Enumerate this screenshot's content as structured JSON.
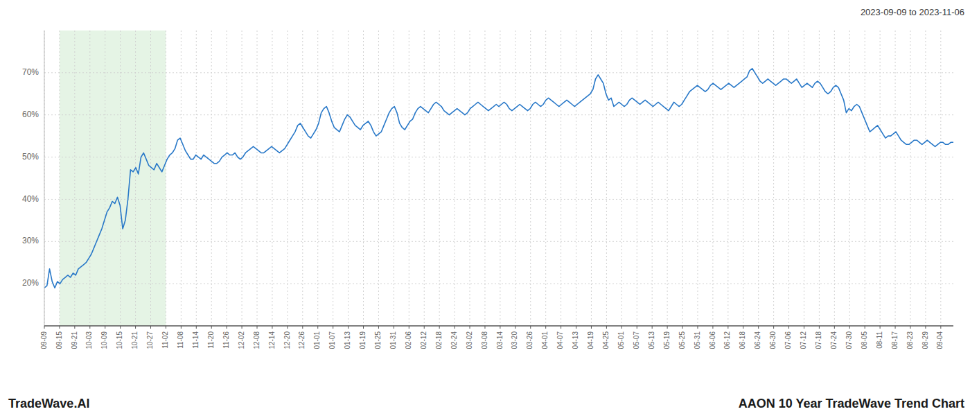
{
  "chart_data": {
    "type": "line",
    "title": "AAON 10 Year TradeWave Trend Chart",
    "subtitle": "2023-09-09 to 2023-11-06",
    "annotations": [
      "TradeWave.AI"
    ],
    "color": "#2878c8",
    "grid": true,
    "span": {
      "x": [
        5.8167,
        46.5333
      ],
      "color": "#d4ecd4"
    },
    "xlim": [
      0,
      348
    ],
    "xticks": [
      {
        "value": 0,
        "label": "09-09"
      },
      {
        "value": 5.8167,
        "label": "09-15"
      },
      {
        "value": 11.6333,
        "label": "09-21"
      },
      {
        "value": 17.45,
        "label": "10-03"
      },
      {
        "value": 23.2667,
        "label": "10-09"
      },
      {
        "value": 29.0833,
        "label": "10-15"
      },
      {
        "value": 34.9,
        "label": "10-21"
      },
      {
        "value": 40.7167,
        "label": "10-27"
      },
      {
        "value": 46.5333,
        "label": "11-02"
      },
      {
        "value": 52.35,
        "label": "11-08"
      },
      {
        "value": 58.1667,
        "label": "11-14"
      },
      {
        "value": 63.9833,
        "label": "11-20"
      },
      {
        "value": 69.8,
        "label": "11-26"
      },
      {
        "value": 75.6167,
        "label": "12-02"
      },
      {
        "value": 81.4333,
        "label": "12-08"
      },
      {
        "value": 87.25,
        "label": "12-14"
      },
      {
        "value": 93.0667,
        "label": "12-20"
      },
      {
        "value": 98.8833,
        "label": "12-26"
      },
      {
        "value": 104.7,
        "label": "01-01"
      },
      {
        "value": 110.5167,
        "label": "01-07"
      },
      {
        "value": 116.3333,
        "label": "01-13"
      },
      {
        "value": 122.15,
        "label": "01-19"
      },
      {
        "value": 127.9667,
        "label": "01-25"
      },
      {
        "value": 133.7833,
        "label": "01-31"
      },
      {
        "value": 139.6,
        "label": "02-06"
      },
      {
        "value": 145.4167,
        "label": "02-12"
      },
      {
        "value": 151.2333,
        "label": "02-18"
      },
      {
        "value": 157.05,
        "label": "02-24"
      },
      {
        "value": 162.8667,
        "label": "03-02"
      },
      {
        "value": 168.6833,
        "label": "03-08"
      },
      {
        "value": 174.5,
        "label": "03-14"
      },
      {
        "value": 180.3167,
        "label": "03-20"
      },
      {
        "value": 186.1333,
        "label": "03-26"
      },
      {
        "value": 191.95,
        "label": "04-01"
      },
      {
        "value": 197.7667,
        "label": "04-07"
      },
      {
        "value": 203.5833,
        "label": "04-13"
      },
      {
        "value": 209.4,
        "label": "04-19"
      },
      {
        "value": 215.2167,
        "label": "04-25"
      },
      {
        "value": 221.0333,
        "label": "05-01"
      },
      {
        "value": 226.85,
        "label": "05-07"
      },
      {
        "value": 232.6667,
        "label": "05-13"
      },
      {
        "value": 238.4833,
        "label": "05-19"
      },
      {
        "value": 244.3,
        "label": "05-25"
      },
      {
        "value": 250.1167,
        "label": "05-31"
      },
      {
        "value": 255.9333,
        "label": "06-06"
      },
      {
        "value": 261.75,
        "label": "06-12"
      },
      {
        "value": 267.5667,
        "label": "06-18"
      },
      {
        "value": 273.3833,
        "label": "06-24"
      },
      {
        "value": 279.2,
        "label": "06-30"
      },
      {
        "value": 285.0167,
        "label": "07-06"
      },
      {
        "value": 290.8333,
        "label": "07-12"
      },
      {
        "value": 296.65,
        "label": "07-18"
      },
      {
        "value": 302.4667,
        "label": "07-24"
      },
      {
        "value": 308.2833,
        "label": "07-30"
      },
      {
        "value": 314.1,
        "label": "08-05"
      },
      {
        "value": 319.9167,
        "label": "08-11"
      },
      {
        "value": 325.7333,
        "label": "08-17"
      },
      {
        "value": 331.55,
        "label": "08-23"
      },
      {
        "value": 337.3667,
        "label": "08-29"
      },
      {
        "value": 343.1833,
        "label": "09-04"
      }
    ],
    "ylim": [
      10,
      80
    ],
    "yticks": [
      {
        "value": 20,
        "label": "20%"
      },
      {
        "value": 30,
        "label": "30%"
      },
      {
        "value": 40,
        "label": "40%"
      },
      {
        "value": 50,
        "label": "50%"
      },
      {
        "value": 60,
        "label": "60%"
      },
      {
        "value": 70,
        "label": "70%"
      }
    ],
    "values": [
      19.0,
      19.5,
      23.5,
      20.5,
      19.0,
      20.5,
      20.0,
      21.0,
      21.5,
      22.0,
      21.5,
      22.5,
      22.0,
      23.5,
      24.0,
      24.5,
      25.0,
      26.0,
      27.0,
      28.5,
      30.0,
      31.5,
      33.0,
      35.0,
      37.0,
      38.0,
      39.5,
      39.0,
      40.5,
      38.5,
      33.0,
      35.0,
      40.0,
      47.0,
      46.5,
      47.5,
      46.0,
      50.0,
      51.0,
      49.5,
      48.0,
      47.5,
      47.0,
      48.5,
      47.5,
      46.5,
      48.0,
      49.5,
      50.5,
      51.0,
      52.0,
      54.0,
      54.5,
      53.0,
      51.5,
      50.5,
      49.5,
      49.5,
      50.5,
      50.0,
      49.5,
      50.5,
      50.0,
      49.5,
      49.0,
      48.5,
      48.5,
      49.0,
      50.0,
      50.5,
      51.0,
      50.5,
      50.5,
      51.0,
      50.0,
      49.5,
      50.0,
      51.0,
      51.5,
      52.0,
      52.5,
      52.0,
      51.5,
      51.0,
      51.0,
      51.5,
      52.0,
      52.5,
      52.0,
      51.5,
      51.0,
      51.5,
      52.0,
      53.0,
      54.0,
      55.0,
      56.0,
      57.5,
      58.0,
      57.0,
      56.0,
      55.0,
      54.5,
      55.5,
      56.5,
      58.0,
      60.5,
      61.5,
      62.0,
      60.5,
      58.5,
      57.0,
      56.5,
      56.0,
      57.5,
      59.0,
      60.0,
      59.5,
      58.5,
      57.5,
      57.0,
      56.5,
      57.5,
      58.0,
      58.5,
      57.5,
      56.0,
      55.0,
      55.5,
      56.0,
      57.5,
      59.0,
      60.5,
      61.5,
      62.0,
      60.5,
      58.0,
      57.0,
      56.5,
      57.5,
      58.5,
      59.0,
      60.5,
      61.5,
      62.0,
      61.5,
      61.0,
      60.5,
      61.5,
      62.5,
      63.0,
      62.5,
      62.0,
      61.0,
      60.5,
      60.0,
      60.5,
      61.0,
      61.5,
      61.0,
      60.5,
      60.0,
      60.5,
      61.5,
      62.0,
      62.5,
      63.0,
      62.5,
      62.0,
      61.5,
      61.0,
      61.5,
      62.0,
      62.5,
      62.0,
      62.5,
      63.0,
      62.5,
      61.5,
      61.0,
      61.5,
      62.0,
      62.5,
      62.0,
      61.5,
      61.0,
      61.5,
      62.5,
      63.0,
      62.5,
      62.0,
      62.5,
      63.5,
      64.0,
      63.5,
      63.0,
      62.5,
      62.0,
      62.5,
      63.0,
      63.5,
      63.0,
      62.5,
      62.0,
      62.5,
      63.0,
      63.5,
      64.0,
      64.5,
      65.0,
      66.0,
      68.5,
      69.5,
      68.5,
      67.5,
      65.0,
      63.5,
      64.0,
      62.0,
      62.5,
      63.0,
      62.5,
      62.0,
      62.5,
      63.5,
      64.0,
      63.5,
      63.0,
      62.5,
      63.0,
      63.5,
      63.0,
      62.5,
      62.0,
      62.5,
      63.0,
      62.5,
      62.0,
      61.5,
      61.0,
      62.0,
      63.0,
      62.5,
      62.0,
      62.5,
      63.5,
      64.5,
      65.5,
      66.0,
      66.5,
      67.0,
      66.5,
      66.0,
      65.5,
      66.0,
      67.0,
      67.5,
      67.0,
      66.5,
      66.0,
      66.5,
      67.0,
      67.5,
      67.0,
      66.5,
      67.0,
      67.5,
      68.0,
      68.5,
      69.0,
      70.5,
      71.0,
      70.0,
      69.0,
      68.0,
      67.5,
      68.0,
      68.5,
      68.0,
      67.5,
      67.0,
      67.5,
      68.0,
      68.5,
      68.5,
      68.0,
      67.5,
      68.0,
      68.5,
      67.5,
      66.5,
      67.0,
      67.5,
      67.0,
      66.5,
      67.5,
      68.0,
      67.5,
      66.5,
      65.5,
      65.0,
      65.5,
      66.5,
      67.0,
      66.5,
      65.0,
      63.5,
      60.5,
      61.5,
      61.0,
      62.0,
      62.5,
      62.0,
      60.5,
      59.0,
      57.5,
      56.0,
      56.5,
      57.0,
      57.5,
      56.5,
      55.5,
      54.5,
      55.0,
      55.0,
      55.5,
      56.0,
      55.0,
      54.0,
      53.5,
      53.0,
      53.0,
      53.5,
      54.0,
      54.0,
      53.5,
      53.0,
      53.5,
      54.0,
      53.5,
      53.0,
      52.5,
      53.0,
      53.5,
      53.5,
      53.0,
      53.0,
      53.5,
      53.5
    ]
  }
}
